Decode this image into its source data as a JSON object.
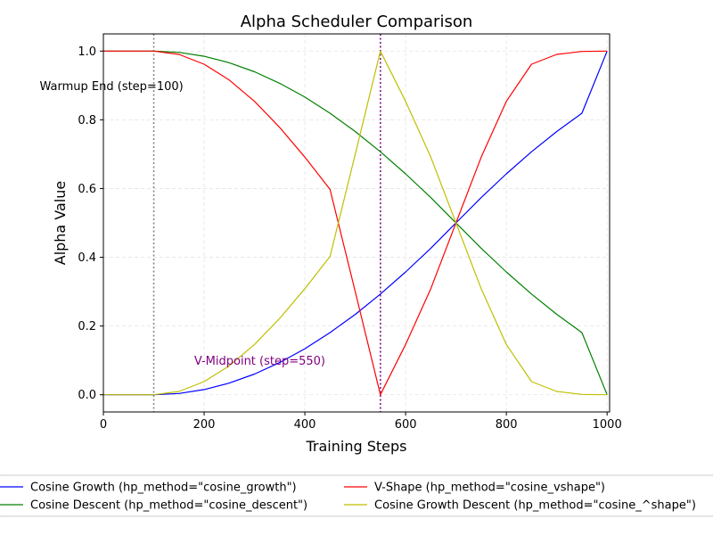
{
  "chart_data": {
    "type": "line",
    "title": "Alpha Scheduler Comparison",
    "xlabel": "Training Steps",
    "ylabel": "Alpha Value",
    "xlim": [
      0,
      1005
    ],
    "ylim": [
      -0.05,
      1.05
    ],
    "xticks": [
      0,
      200,
      400,
      600,
      800,
      1000
    ],
    "yticks": [
      0.0,
      0.2,
      0.4,
      0.6,
      0.8,
      1.0
    ],
    "xtick_labels": [
      "0",
      "200",
      "400",
      "600",
      "800",
      "1000"
    ],
    "ytick_labels": [
      "0.0",
      "0.2",
      "0.4",
      "0.6",
      "0.8",
      "1.0"
    ],
    "grid": true,
    "legend_position": "bottom, two columns, outside plot",
    "series": [
      {
        "name": "Cosine Growth (hp_method=\"cosine_growth\")",
        "color": "#0000ff",
        "x": [
          0,
          100,
          150,
          200,
          250,
          300,
          350,
          400,
          450,
          500,
          550,
          600,
          650,
          700,
          750,
          800,
          850,
          900,
          950,
          1000
        ],
        "y": [
          0.0,
          0.0,
          0.0038,
          0.0152,
          0.0341,
          0.0603,
          0.0937,
          0.134,
          0.1808,
          0.2339,
          0.2929,
          0.3572,
          0.4264,
          0.5,
          0.5736,
          0.6428,
          0.7071,
          0.766,
          0.8192,
          1.0
        ]
      },
      {
        "name": "Cosine Descent (hp_method=\"cosine_descent\")",
        "color": "#008000",
        "x": [
          0,
          100,
          150,
          200,
          250,
          300,
          350,
          400,
          450,
          500,
          550,
          600,
          650,
          700,
          750,
          800,
          850,
          900,
          950,
          1000
        ],
        "y": [
          1.0,
          1.0,
          0.9962,
          0.9848,
          0.9659,
          0.9397,
          0.9063,
          0.866,
          0.8192,
          0.766,
          0.7071,
          0.6428,
          0.5736,
          0.5,
          0.4264,
          0.3572,
          0.2929,
          0.234,
          0.1808,
          0.0
        ]
      },
      {
        "name": "V-Shape (hp_method=\"cosine_vshape\")",
        "color": "#ff0000",
        "x": [
          0,
          100,
          150,
          200,
          250,
          300,
          350,
          400,
          450,
          500,
          550,
          600,
          650,
          700,
          750,
          800,
          850,
          900,
          950,
          1000
        ],
        "y": [
          1.0,
          1.0,
          0.9904,
          0.9619,
          0.9157,
          0.8536,
          0.7778,
          0.6913,
          0.5975,
          0.3,
          0.0,
          0.1464,
          0.3087,
          0.5,
          0.6913,
          0.8536,
          0.9619,
          0.9904,
          0.999,
          1.0
        ]
      },
      {
        "name": "Cosine Growth Descent (hp_method=\"cosine_^shape\")",
        "color": "#bfbf00",
        "x": [
          0,
          100,
          150,
          200,
          250,
          300,
          350,
          400,
          450,
          500,
          550,
          600,
          650,
          700,
          750,
          800,
          850,
          900,
          950,
          1000
        ],
        "y": [
          0.0,
          0.0,
          0.0096,
          0.0381,
          0.0843,
          0.1464,
          0.2222,
          0.3087,
          0.4025,
          0.7,
          1.0,
          0.8536,
          0.6913,
          0.5,
          0.3087,
          0.1464,
          0.0381,
          0.0096,
          0.001,
          0.0
        ]
      }
    ],
    "annotations": [
      {
        "text": "Warmup End (step=100)",
        "x": 100,
        "line_color": "#808080",
        "text_color": "#000000"
      },
      {
        "text": "V-Midpoint (step=550)",
        "x": 550,
        "line_color": "#800080",
        "text_color": "#800080"
      }
    ]
  }
}
